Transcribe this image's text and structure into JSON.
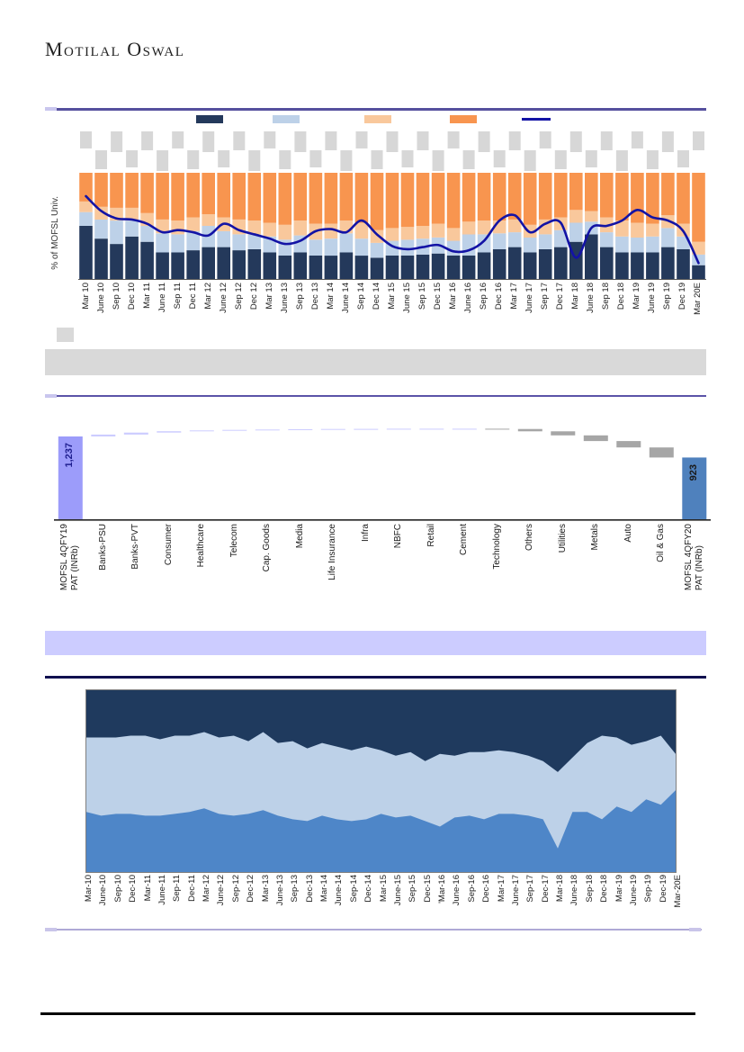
{
  "brand": {
    "name": "Motilal Oswal"
  },
  "decor": {
    "top_rule_color": "#55509E",
    "top_rule_nub_color": "#C9C6EE",
    "gray_banner_color": "#D9D9D9",
    "purple_rule_color": "#5B54A8",
    "lavender_banner_color": "#CCCCFF",
    "navy_rule_color": "#10104F",
    "bottom_rule_color": "#AFA9D6",
    "bottom_rule_nub_color": "#C9C5E9",
    "black_rule_color": "#000000",
    "placeholder_box_color": "#D7D7D7"
  },
  "chart_data": [
    {
      "type": "bar",
      "subtype": "stacked-100-with-line",
      "title": "",
      "xlabel": "",
      "ylabel": "% of MOFSL Univ.",
      "ylim": [
        0,
        100
      ],
      "grid": false,
      "data_labels_redacted": true,
      "legend": {
        "position": "top",
        "labels_visible": false,
        "items": [
          {
            "type": "box",
            "color": "#24395B",
            "label": ""
          },
          {
            "type": "box",
            "color": "#BDD1E8",
            "label": ""
          },
          {
            "type": "box",
            "color": "#F9C89C",
            "label": ""
          },
          {
            "type": "box",
            "color": "#F8954F",
            "label": ""
          },
          {
            "type": "line",
            "color": "#1313A5",
            "label": ""
          }
        ]
      },
      "categories": [
        "Mar 10",
        "June 10",
        "Sep 10",
        "Dec 10",
        "Mar 11",
        "June 11",
        "Sep 11",
        "Dec 11",
        "Mar 12",
        "June 12",
        "Sep 12",
        "Dec 12",
        "Mar 13",
        "June 13",
        "Sep 13",
        "Dec 13",
        "Mar 14",
        "June 14",
        "Sep 14",
        "Dec 14",
        "Mar 15",
        "June 15",
        "Sep 15",
        "Dec 15",
        "Mar 16",
        "June 16",
        "Sep 16",
        "Dec 16",
        "Mar 17",
        "June 17",
        "Sep 17",
        "Dec 17",
        "Mar 18",
        "June 18",
        "Sep 18",
        "Dec 18",
        "Mar 19",
        "June 19",
        "Sep 19",
        "Dec 19",
        "Mar 20E"
      ],
      "series": [
        {
          "name": "segment-1",
          "color": "#24395B",
          "values": [
            50,
            38,
            33,
            40,
            35,
            25,
            25,
            27,
            30,
            30,
            27,
            28,
            25,
            22,
            25,
            22,
            22,
            25,
            22,
            20,
            22,
            22,
            23,
            24,
            22,
            22,
            25,
            28,
            30,
            25,
            28,
            30,
            35,
            42,
            30,
            25,
            25,
            25,
            30,
            28,
            13
          ]
        },
        {
          "name": "segment-2",
          "color": "#BDD1E8",
          "values": [
            13,
            18,
            22,
            15,
            15,
            18,
            17,
            18,
            20,
            15,
            15,
            14,
            15,
            15,
            16,
            15,
            16,
            18,
            16,
            14,
            14,
            15,
            15,
            15,
            14,
            20,
            17,
            15,
            14,
            14,
            14,
            16,
            18,
            12,
            14,
            15,
            14,
            15,
            18,
            12,
            10
          ]
        },
        {
          "name": "segment-3",
          "color": "#F9C89C",
          "values": [
            10,
            12,
            12,
            12,
            12,
            13,
            13,
            13,
            11,
            13,
            14,
            13,
            13,
            14,
            14,
            15,
            14,
            12,
            15,
            12,
            12,
            12,
            12,
            13,
            12,
            12,
            13,
            12,
            12,
            12,
            14,
            12,
            12,
            10,
            14,
            15,
            14,
            12,
            12,
            12,
            12
          ]
        },
        {
          "name": "segment-4",
          "color": "#F8954F",
          "values": [
            27,
            32,
            33,
            33,
            38,
            44,
            45,
            42,
            39,
            42,
            44,
            45,
            47,
            49,
            45,
            48,
            48,
            45,
            47,
            54,
            52,
            51,
            50,
            48,
            52,
            46,
            45,
            45,
            44,
            49,
            44,
            42,
            35,
            36,
            42,
            45,
            47,
            48,
            40,
            48,
            65
          ]
        }
      ],
      "line": {
        "name": "line-series",
        "color": "#1313A5",
        "values": [
          78,
          64,
          57,
          56,
          52,
          44,
          46,
          44,
          41,
          52,
          46,
          42,
          38,
          33,
          36,
          45,
          47,
          44,
          55,
          42,
          31,
          28,
          30,
          32,
          26,
          27,
          36,
          55,
          60,
          44,
          52,
          53,
          20,
          48,
          50,
          55,
          65,
          58,
          55,
          45,
          15
        ]
      }
    },
    {
      "type": "bar",
      "subtype": "waterfall",
      "title": "",
      "unit": "INRb",
      "start": {
        "label": "MOFSL 4QFY19\nPAT (INRb)",
        "value": 1237,
        "display": "1,237",
        "color": "#9C9CFA",
        "value_color": "#1F1F8F"
      },
      "end": {
        "label": "MOFSL 4QFY20\nPAT (INRb)",
        "value": 923,
        "display": "923",
        "color": "#4F81BD",
        "value_color": "#1a1a1a"
      },
      "colors": {
        "increase": "#CCCCFF",
        "decrease": "#A6A6A6"
      },
      "steps": [
        {
          "label": "Banks-PSU",
          "value": 28
        },
        {
          "label": "Banks-PVT",
          "value": 30
        },
        {
          "label": "Consumer",
          "value": 20
        },
        {
          "label": "Healthcare",
          "value": 12
        },
        {
          "label": "Telecom",
          "value": 8
        },
        {
          "label": "Cap. Goods",
          "value": 6
        },
        {
          "label": "Media",
          "value": 4
        },
        {
          "label": "Life Insurance",
          "value": 3
        },
        {
          "label": "Infra",
          "value": 2
        },
        {
          "label": "NBFC",
          "value": 2
        },
        {
          "label": "Retail",
          "value": 1
        },
        {
          "label": "Cement",
          "value": 0
        },
        {
          "label": "Technology",
          "value": -5
        },
        {
          "label": "Others",
          "value": -35
        },
        {
          "label": "Utilities",
          "value": -60
        },
        {
          "label": "Metals",
          "value": -85
        },
        {
          "label": "Auto",
          "value": -95
        },
        {
          "label": "Oil & Gas",
          "value": -150
        }
      ]
    },
    {
      "type": "area",
      "subtype": "stacked-100",
      "title": "",
      "ylim": [
        0,
        100
      ],
      "grid": false,
      "categories": [
        "Mar-10",
        "June-10",
        "Sep-10",
        "Dec-10",
        "Mar-11",
        "June-11",
        "Sep-11",
        "Dec-11",
        "Mar-12",
        "June-12",
        "Sep-12",
        "Dec-12",
        "Mar-13",
        "June-13",
        "Sep-13",
        "Dec-13",
        "Mar-14",
        "June-14",
        "Sep-14",
        "Dec-14",
        "Mar-15",
        "June-15",
        "Sep-15",
        "Dec-15",
        "'Mar-16",
        "June-16",
        "Sep-16",
        "Dec-16",
        "Mar-17",
        "June-17",
        "Sep-17",
        "Dec-17",
        "Mar-18",
        "June-18",
        "Sep-18",
        "Dec-18",
        "Mar-19",
        "June-19",
        "Sep-19",
        "Dec-19",
        "Mar-20E"
      ],
      "series": [
        {
          "name": "band-bottom",
          "color": "#4E86C8",
          "values": [
            33,
            31,
            32,
            32,
            31,
            31,
            32,
            33,
            35,
            32,
            31,
            32,
            34,
            31,
            29,
            28,
            31,
            29,
            28,
            29,
            32,
            30,
            31,
            28,
            25,
            30,
            31,
            29,
            32,
            32,
            31,
            29,
            13,
            33,
            33,
            29,
            36,
            33,
            40,
            37,
            45
          ]
        },
        {
          "name": "band-middle",
          "color": "#BDD1E8",
          "values": [
            41,
            43,
            42,
            43,
            44,
            42,
            43,
            42,
            42,
            42,
            44,
            40,
            43,
            40,
            43,
            40,
            40,
            40,
            39,
            40,
            35,
            34,
            35,
            33,
            40,
            34,
            35,
            37,
            35,
            34,
            33,
            32,
            42,
            30,
            38,
            46,
            38,
            37,
            32,
            38,
            20
          ]
        },
        {
          "name": "band-top",
          "color": "#1F3A5E",
          "values": [
            26,
            26,
            26,
            25,
            25,
            27,
            25,
            25,
            23,
            26,
            25,
            28,
            23,
            29,
            28,
            32,
            29,
            31,
            33,
            31,
            33,
            36,
            34,
            39,
            35,
            36,
            34,
            34,
            33,
            34,
            36,
            39,
            45,
            37,
            29,
            25,
            26,
            30,
            28,
            25,
            35
          ]
        }
      ]
    }
  ]
}
